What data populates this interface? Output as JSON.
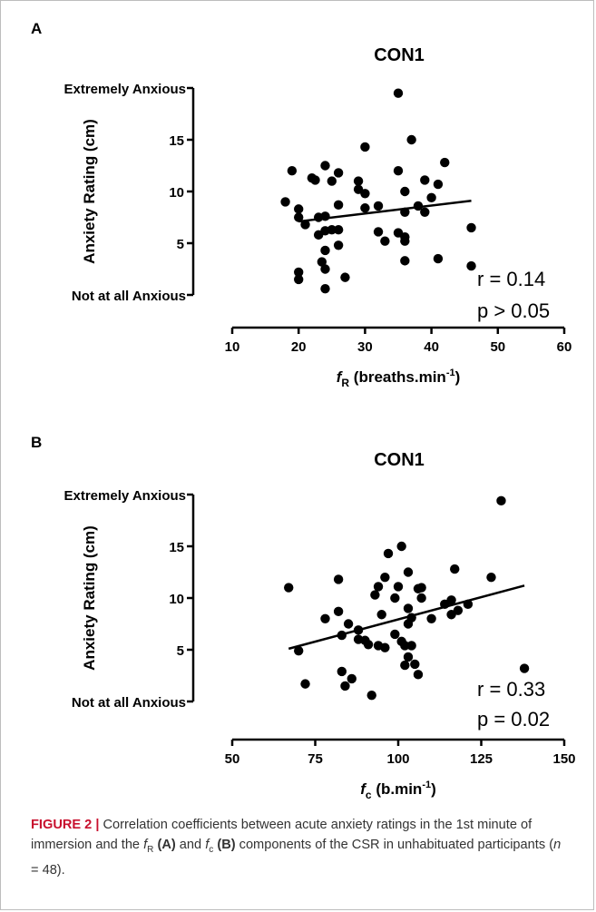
{
  "figure": {
    "caption_label": "FIGURE 2 |",
    "caption_parts": {
      "p1": "Correlation coefficients between acute anxiety ratings in the 1st minute of immersion and the ",
      "fR_italic": "f",
      "fR_sub": "R",
      "p2": " ",
      "A_bold": "(A)",
      "p3": " and ",
      "fc_italic": "f",
      "fc_sub": "c",
      "p4": " ",
      "B_bold": "(B)",
      "p5": " components of the CSR in unhabituated participants (",
      "n_italic": "n",
      "p6": " = 48)."
    }
  },
  "chart_data": [
    {
      "panel": "A",
      "type": "scatter",
      "title": "CON1",
      "ylabel": "Anxiety Rating (cm)",
      "xlabel_f": "f",
      "xlabel_sub": "R",
      "xlabel_rest": " (breaths.min",
      "xlabel_sup": "-1",
      "xlabel_end": ")",
      "xlim": [
        10,
        60
      ],
      "xticks": [
        10,
        20,
        30,
        40,
        50,
        60
      ],
      "ylim": [
        0,
        20
      ],
      "yticks": [
        5,
        10,
        15
      ],
      "ytick_text": {
        "top": "Extremely Anxious",
        "bottom": "Not at all Anxious"
      },
      "stats": {
        "r": "r = 0.14",
        "p": "p > 0.05"
      },
      "trend": {
        "x": [
          20,
          46
        ],
        "y": [
          7.1,
          9.1
        ]
      },
      "points": [
        [
          18,
          9
        ],
        [
          19,
          12
        ],
        [
          20,
          8.3
        ],
        [
          20,
          7.5
        ],
        [
          20,
          2.2
        ],
        [
          20,
          1.5
        ],
        [
          21,
          6.8
        ],
        [
          22,
          11.3
        ],
        [
          22.5,
          11.1
        ],
        [
          23,
          7.5
        ],
        [
          23,
          5.8
        ],
        [
          23.5,
          3.2
        ],
        [
          24,
          12.5
        ],
        [
          24,
          7.6
        ],
        [
          24,
          6.2
        ],
        [
          24,
          4.3
        ],
        [
          24,
          2.5
        ],
        [
          24,
          0.6
        ],
        [
          25,
          11
        ],
        [
          25,
          6.3
        ],
        [
          26,
          11.8
        ],
        [
          26,
          8.7
        ],
        [
          26,
          6.3
        ],
        [
          26,
          4.8
        ],
        [
          27,
          1.7
        ],
        [
          29,
          11
        ],
        [
          29,
          10.2
        ],
        [
          30,
          14.3
        ],
        [
          30,
          9.8
        ],
        [
          30,
          8.4
        ],
        [
          32,
          8.6
        ],
        [
          32,
          6.1
        ],
        [
          33,
          5.2
        ],
        [
          35,
          19.5
        ],
        [
          35,
          12
        ],
        [
          35,
          6
        ],
        [
          36,
          10
        ],
        [
          36,
          8
        ],
        [
          36,
          5.6
        ],
        [
          36,
          5.2
        ],
        [
          36,
          3.3
        ],
        [
          37,
          15
        ],
        [
          38,
          8.6
        ],
        [
          39,
          11.1
        ],
        [
          39,
          8
        ],
        [
          40,
          9.4
        ],
        [
          41,
          10.7
        ],
        [
          41,
          3.5
        ],
        [
          42,
          12.8
        ],
        [
          46,
          6.5
        ],
        [
          46,
          2.8
        ]
      ]
    },
    {
      "panel": "B",
      "type": "scatter",
      "title": "CON1",
      "ylabel": "Anxiety Rating (cm)",
      "xlabel_f": "f",
      "xlabel_sub": "c",
      "xlabel_rest": " (b.min",
      "xlabel_sup": "-1",
      "xlabel_end": ")",
      "xlim": [
        50,
        150
      ],
      "xticks": [
        50,
        75,
        100,
        125,
        150
      ],
      "ylim": [
        0,
        20
      ],
      "yticks": [
        5,
        10,
        15
      ],
      "ytick_text": {
        "top": "Extremely Anxious",
        "bottom": "Not at all Anxious"
      },
      "stats": {
        "r": "r = 0.33",
        "p": "p = 0.02"
      },
      "trend": {
        "x": [
          67,
          138
        ],
        "y": [
          5.1,
          11.2
        ]
      },
      "points": [
        [
          67,
          11
        ],
        [
          70,
          4.9
        ],
        [
          72,
          1.7
        ],
        [
          78,
          8
        ],
        [
          82,
          11.8
        ],
        [
          82,
          8.7
        ],
        [
          83,
          6.4
        ],
        [
          83,
          2.9
        ],
        [
          84,
          1.5
        ],
        [
          85,
          7.5
        ],
        [
          86,
          2.2
        ],
        [
          88,
          6.9
        ],
        [
          88,
          6
        ],
        [
          90,
          5.9
        ],
        [
          91,
          5.5
        ],
        [
          92,
          0.6
        ],
        [
          93,
          10.3
        ],
        [
          94,
          11.1
        ],
        [
          94,
          5.4
        ],
        [
          95,
          8.4
        ],
        [
          96,
          12
        ],
        [
          96,
          5.2
        ],
        [
          97,
          14.3
        ],
        [
          99,
          6.5
        ],
        [
          99,
          10
        ],
        [
          100,
          11.1
        ],
        [
          101,
          15
        ],
        [
          101,
          5.8
        ],
        [
          102,
          5.4
        ],
        [
          102,
          3.5
        ],
        [
          103,
          7.5
        ],
        [
          103,
          4.3
        ],
        [
          103,
          12.5
        ],
        [
          103,
          9
        ],
        [
          104,
          8.1
        ],
        [
          104,
          5.4
        ],
        [
          105,
          3.6
        ],
        [
          106,
          10.9
        ],
        [
          106,
          2.6
        ],
        [
          107,
          10
        ],
        [
          107,
          11
        ],
        [
          110,
          8
        ],
        [
          114,
          9.4
        ],
        [
          116,
          9.8
        ],
        [
          116,
          8.4
        ],
        [
          117,
          12.8
        ],
        [
          118,
          8.8
        ],
        [
          121,
          9.4
        ],
        [
          128,
          12
        ],
        [
          131,
          19.4
        ],
        [
          138,
          3.2
        ]
      ]
    }
  ]
}
